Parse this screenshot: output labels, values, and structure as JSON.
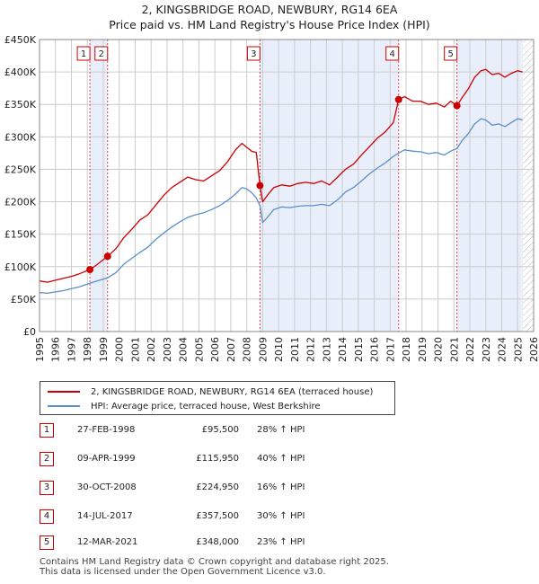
{
  "title": "2, KINGSBRIDGE ROAD, NEWBURY, RG14 6EA",
  "subtitle": "Price paid vs. HM Land Registry's House Price Index (HPI)",
  "colors": {
    "property": "#cc0000",
    "hpi": "#5b8fc9",
    "shade": "#e8eefa",
    "grid": "#cccccc",
    "vline": "#dd4444"
  },
  "chart_data": {
    "type": "line",
    "xlim": [
      1995,
      2026
    ],
    "ylim": [
      0,
      450000
    ],
    "y_ticks": [
      0,
      50000,
      100000,
      150000,
      200000,
      250000,
      300000,
      350000,
      400000,
      450000
    ],
    "y_tick_labels": [
      "£0",
      "£50K",
      "£100K",
      "£150K",
      "£200K",
      "£250K",
      "£300K",
      "£350K",
      "£400K",
      "£450K"
    ],
    "x_ticks": [
      1995,
      1996,
      1997,
      1998,
      1999,
      2000,
      2001,
      2002,
      2003,
      2004,
      2005,
      2006,
      2007,
      2008,
      2009,
      2010,
      2011,
      2012,
      2013,
      2014,
      2015,
      2016,
      2017,
      2018,
      2019,
      2020,
      2021,
      2022,
      2023,
      2024,
      2025,
      2026
    ],
    "x_tick_labels": [
      "1995",
      "1996",
      "1997",
      "1998",
      "1999",
      "2000",
      "2001",
      "2002",
      "2003",
      "2004",
      "2005",
      "2006",
      "2007",
      "2008",
      "2009",
      "2010",
      "2011",
      "2012",
      "2013",
      "2014",
      "2015",
      "2016",
      "2017",
      "2018",
      "2019",
      "2020",
      "2021",
      "2022",
      "2023",
      "2024",
      "2025",
      "2026"
    ],
    "shaded_ranges": [
      [
        1998.16,
        1999.27
      ],
      [
        2008.83,
        2017.53
      ],
      [
        2021.19,
        2025.33
      ]
    ],
    "hatched_after": 2025.33,
    "series": [
      {
        "name": "2, KINGSBRIDGE ROAD, NEWBURY, RG14 6EA (terraced house)",
        "x": [
          1995.0,
          1995.5,
          1996.0,
          1996.5,
          1997.0,
          1997.5,
          1998.16,
          1998.6,
          1999.27,
          1999.8,
          2000.3,
          2000.8,
          2001.3,
          2001.8,
          2002.3,
          2002.8,
          2003.3,
          2003.8,
          2004.3,
          2004.8,
          2005.3,
          2005.8,
          2006.3,
          2006.8,
          2007.3,
          2007.7,
          2008.0,
          2008.3,
          2008.6,
          2008.83,
          2009.0,
          2009.3,
          2009.7,
          2010.2,
          2010.7,
          2011.2,
          2011.7,
          2012.2,
          2012.7,
          2013.2,
          2013.7,
          2014.2,
          2014.7,
          2015.2,
          2015.7,
          2016.2,
          2016.7,
          2017.2,
          2017.53,
          2017.9,
          2018.4,
          2018.9,
          2019.4,
          2019.9,
          2020.4,
          2020.8,
          2021.19,
          2021.5,
          2021.9,
          2022.3,
          2022.7,
          2023.0,
          2023.4,
          2023.8,
          2024.2,
          2024.6,
          2025.0,
          2025.3
        ],
        "values": [
          78000,
          76000,
          79000,
          82000,
          85000,
          89000,
          95500,
          103000,
          115950,
          128000,
          145000,
          158000,
          172000,
          180000,
          195000,
          210000,
          222000,
          230000,
          238000,
          234000,
          232000,
          240000,
          248000,
          262000,
          280000,
          290000,
          284000,
          278000,
          276000,
          224950,
          200000,
          210000,
          222000,
          226000,
          224000,
          228000,
          230000,
          228000,
          232000,
          226000,
          238000,
          250000,
          258000,
          272000,
          285000,
          298000,
          308000,
          322000,
          357500,
          362000,
          355000,
          355000,
          350000,
          352000,
          346000,
          355000,
          348000,
          360000,
          374000,
          392000,
          402000,
          404000,
          396000,
          398000,
          392000,
          398000,
          402000,
          400000
        ]
      },
      {
        "name": "HPI: Average price, terraced house, West Berkshire",
        "x": [
          1995.0,
          1995.5,
          1996.0,
          1996.5,
          1997.0,
          1997.5,
          1998.16,
          1998.6,
          1999.27,
          1999.8,
          2000.3,
          2000.8,
          2001.3,
          2001.8,
          2002.3,
          2002.8,
          2003.3,
          2003.8,
          2004.3,
          2004.8,
          2005.3,
          2005.8,
          2006.3,
          2006.8,
          2007.3,
          2007.7,
          2008.0,
          2008.3,
          2008.6,
          2008.83,
          2009.0,
          2009.3,
          2009.7,
          2010.2,
          2010.7,
          2011.2,
          2011.7,
          2012.2,
          2012.7,
          2013.2,
          2013.7,
          2014.2,
          2014.7,
          2015.2,
          2015.7,
          2016.2,
          2016.7,
          2017.2,
          2017.53,
          2017.9,
          2018.4,
          2018.9,
          2019.4,
          2019.9,
          2020.4,
          2020.8,
          2021.19,
          2021.5,
          2021.9,
          2022.3,
          2022.7,
          2023.0,
          2023.4,
          2023.8,
          2024.2,
          2024.6,
          2025.0,
          2025.3
        ],
        "values": [
          60000,
          59000,
          61000,
          63000,
          66000,
          69000,
          74500,
          78000,
          82800,
          91000,
          104000,
          113000,
          122000,
          130000,
          142000,
          152000,
          161000,
          169000,
          176000,
          180000,
          183000,
          188000,
          194000,
          202000,
          212000,
          222000,
          220000,
          214000,
          206000,
          193900,
          168000,
          176000,
          188000,
          192000,
          191000,
          193000,
          194000,
          194000,
          196000,
          194000,
          203000,
          215000,
          222000,
          232000,
          243000,
          252000,
          260000,
          270000,
          275000,
          280000,
          278000,
          277000,
          274000,
          276000,
          272000,
          278000,
          282000,
          294000,
          305000,
          320000,
          328000,
          326000,
          318000,
          320000,
          316000,
          322000,
          328000,
          326000
        ]
      }
    ],
    "transactions": [
      {
        "label": "1",
        "date": "27-FEB-1998",
        "x": 1998.16,
        "price": 95500,
        "price_text": "£95,500",
        "hpi_text": "28% ↑ HPI"
      },
      {
        "label": "2",
        "date": "09-APR-1999",
        "x": 1999.27,
        "price": 115950,
        "price_text": "£115,950",
        "hpi_text": "40% ↑ HPI"
      },
      {
        "label": "3",
        "date": "30-OCT-2008",
        "x": 2008.83,
        "price": 224950,
        "price_text": "£224,950",
        "hpi_text": "16% ↑ HPI"
      },
      {
        "label": "4",
        "date": "14-JUL-2017",
        "x": 2017.53,
        "price": 357500,
        "price_text": "£357,500",
        "hpi_text": "30% ↑ HPI"
      },
      {
        "label": "5",
        "date": "12-MAR-2021",
        "x": 2021.19,
        "price": 348000,
        "price_text": "£348,000",
        "hpi_text": "23% ↑ HPI"
      }
    ]
  },
  "legend": {
    "property_label": "2, KINGSBRIDGE ROAD, NEWBURY, RG14 6EA (terraced house)",
    "hpi_label": "HPI: Average price, terraced house, West Berkshire"
  },
  "footer": {
    "line1": "Contains HM Land Registry data © Crown copyright and database right 2025.",
    "line2": "This data is licensed under the Open Government Licence v3.0."
  }
}
